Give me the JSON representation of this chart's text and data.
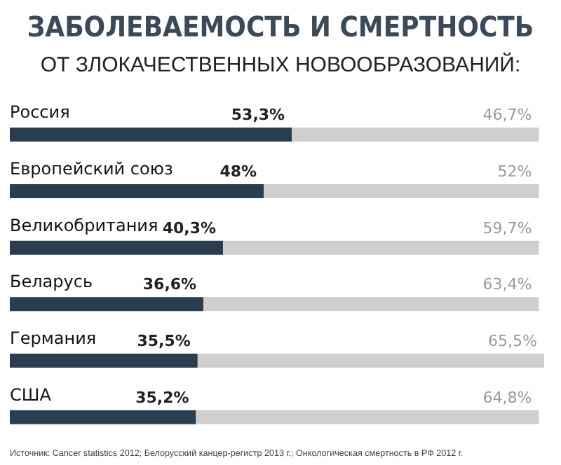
{
  "chart_data": {
    "type": "bar",
    "orientation": "horizontal",
    "stacked": true,
    "title": "ЗАБОЛЕВАЕМОСТЬ И СМЕРТНОСТЬ",
    "subtitle": "ОТ ЗЛОКАЧЕСТВЕННЫХ НОВООБРАЗОВАНИЙ:",
    "categories": [
      "Россия",
      "Европейский союз",
      "Великобритания",
      "Беларусь",
      "Германия",
      "США"
    ],
    "series": [
      {
        "color": "#2b3e50",
        "values": [
          53.3,
          48,
          40.3,
          36.6,
          35.5,
          35.2
        ],
        "value_labels": [
          "53,3%",
          "48%",
          "40,3%",
          "36,6%",
          "35,5%",
          "35,2%"
        ]
      },
      {
        "color": "#cfcfcf",
        "values": [
          46.7,
          52,
          59.7,
          63.4,
          65.5,
          64.8
        ],
        "value_labels": [
          "46,7%",
          "52%",
          "59,7%",
          "63,4%",
          "65,5%",
          "64,8%"
        ]
      }
    ],
    "annotations": [
      "Источник: Cancer statistics 2012; Белорусский канцер-регистр 2013 г.; Онкологическая смертность в РФ 2012 г."
    ]
  }
}
